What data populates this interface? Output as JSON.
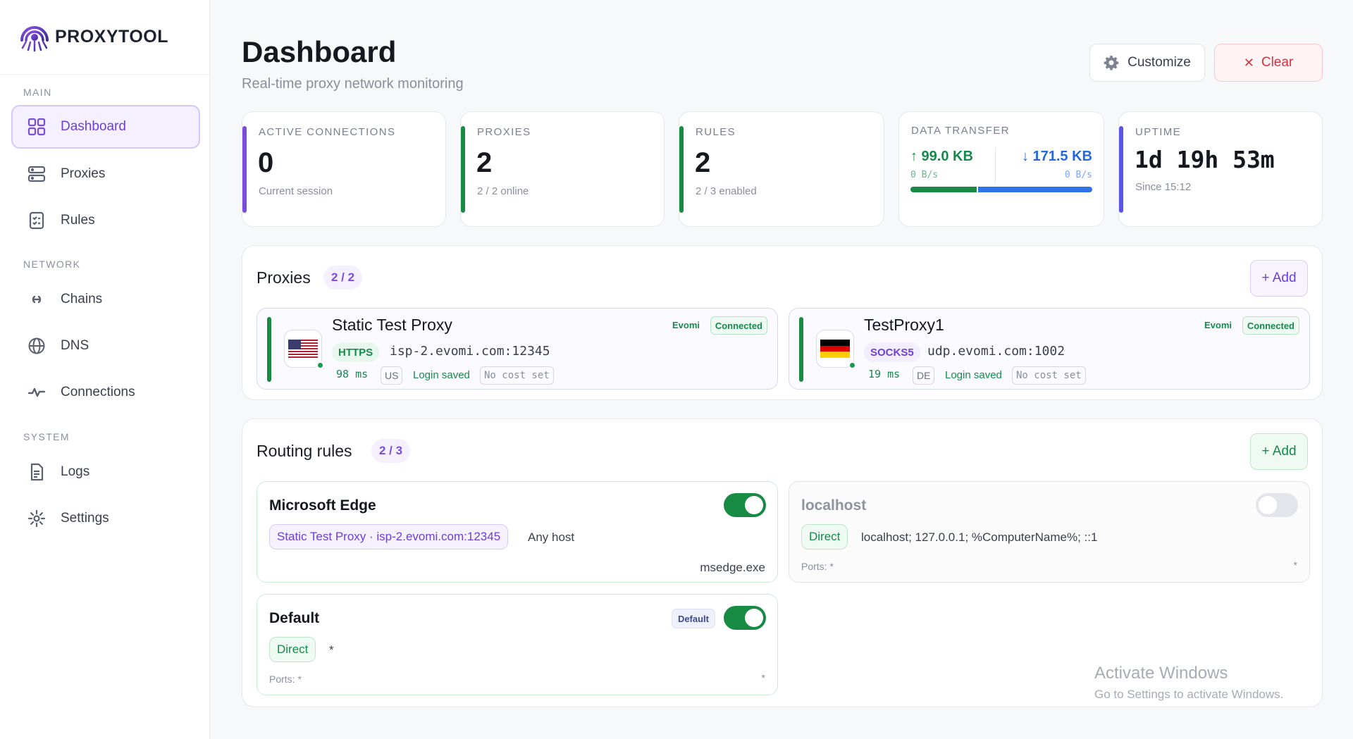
{
  "app": {
    "name": "PROXYTOOL"
  },
  "sidebar": {
    "sections": [
      {
        "label": "MAIN"
      },
      {
        "label": "NETWORK"
      },
      {
        "label": "SYSTEM"
      }
    ],
    "items": [
      {
        "label": "Dashboard",
        "icon": "grid-icon",
        "active": true
      },
      {
        "label": "Proxies",
        "icon": "server-icon"
      },
      {
        "label": "Rules",
        "icon": "checklist-icon"
      },
      {
        "label": "Chains",
        "icon": "link-icon"
      },
      {
        "label": "DNS",
        "icon": "globe-icon"
      },
      {
        "label": "Connections",
        "icon": "activity-icon"
      },
      {
        "label": "Logs",
        "icon": "document-icon"
      },
      {
        "label": "Settings",
        "icon": "gear-icon"
      }
    ]
  },
  "header": {
    "title": "Dashboard",
    "subtitle": "Real-time proxy network monitoring",
    "customize_label": "Customize",
    "clear_label": "Clear"
  },
  "stats": {
    "active_connections": {
      "label": "ACTIVE CONNECTIONS",
      "value": "0",
      "sub": "Current session",
      "color": "#7c4ddb"
    },
    "proxies": {
      "label": "PROXIES",
      "value": "2",
      "sub": "2 / 2 online",
      "color": "#178a44"
    },
    "rules": {
      "label": "RULES",
      "value": "2",
      "sub": "2 / 3 enabled",
      "color": "#178a44"
    },
    "data_transfer": {
      "label": "DATA TRANSFER",
      "up": "↑ 99.0 KB",
      "down": "↓ 171.5 KB",
      "up_rate": "0 B/s",
      "down_rate": "0 B/s",
      "up_fraction": 0.366
    },
    "uptime": {
      "label": "UPTIME",
      "value": "1d 19h 53m",
      "sub": "Since 15:12",
      "color": "#5a55e6"
    }
  },
  "proxies_panel": {
    "title": "Proxies",
    "count": "2 / 2",
    "add_label": "+ Add",
    "items": [
      {
        "name": "Static Test Proxy",
        "provider": "Evomi",
        "status": "Connected",
        "protocol": "HTTPS",
        "host": "isp-2.evomi.com:12345",
        "ping": "98 ms",
        "country": "US",
        "login": "Login saved",
        "cost": "No cost set",
        "flag": "us-flag-icon"
      },
      {
        "name": "TestProxy1",
        "provider": "Evomi",
        "status": "Connected",
        "protocol": "SOCKS5",
        "host": "udp.evomi.com:1002",
        "ping": "19 ms",
        "country": "DE",
        "login": "Login saved",
        "cost": "No cost set",
        "flag": "de-flag-icon"
      }
    ]
  },
  "rules_panel": {
    "title": "Routing rules",
    "count": "2 / 3",
    "add_label": "+ Add",
    "items": [
      {
        "name": "Microsoft Edge",
        "enabled": true,
        "target": "Static Test Proxy · isp-2.evomi.com:12345",
        "match": "Any host",
        "process": "msedge.exe"
      },
      {
        "name": "localhost",
        "enabled": false,
        "target": "Direct",
        "match": "localhost; 127.0.0.1; %ComputerName%; ::1",
        "ports": "Ports: *",
        "star": "*"
      },
      {
        "name": "Default",
        "enabled": true,
        "badge": "Default",
        "target": "Direct",
        "match": "*",
        "ports": "Ports: *",
        "star": "*"
      }
    ]
  },
  "watermark": {
    "line1": "Activate Windows",
    "line2": "Go to Settings to activate Windows."
  }
}
